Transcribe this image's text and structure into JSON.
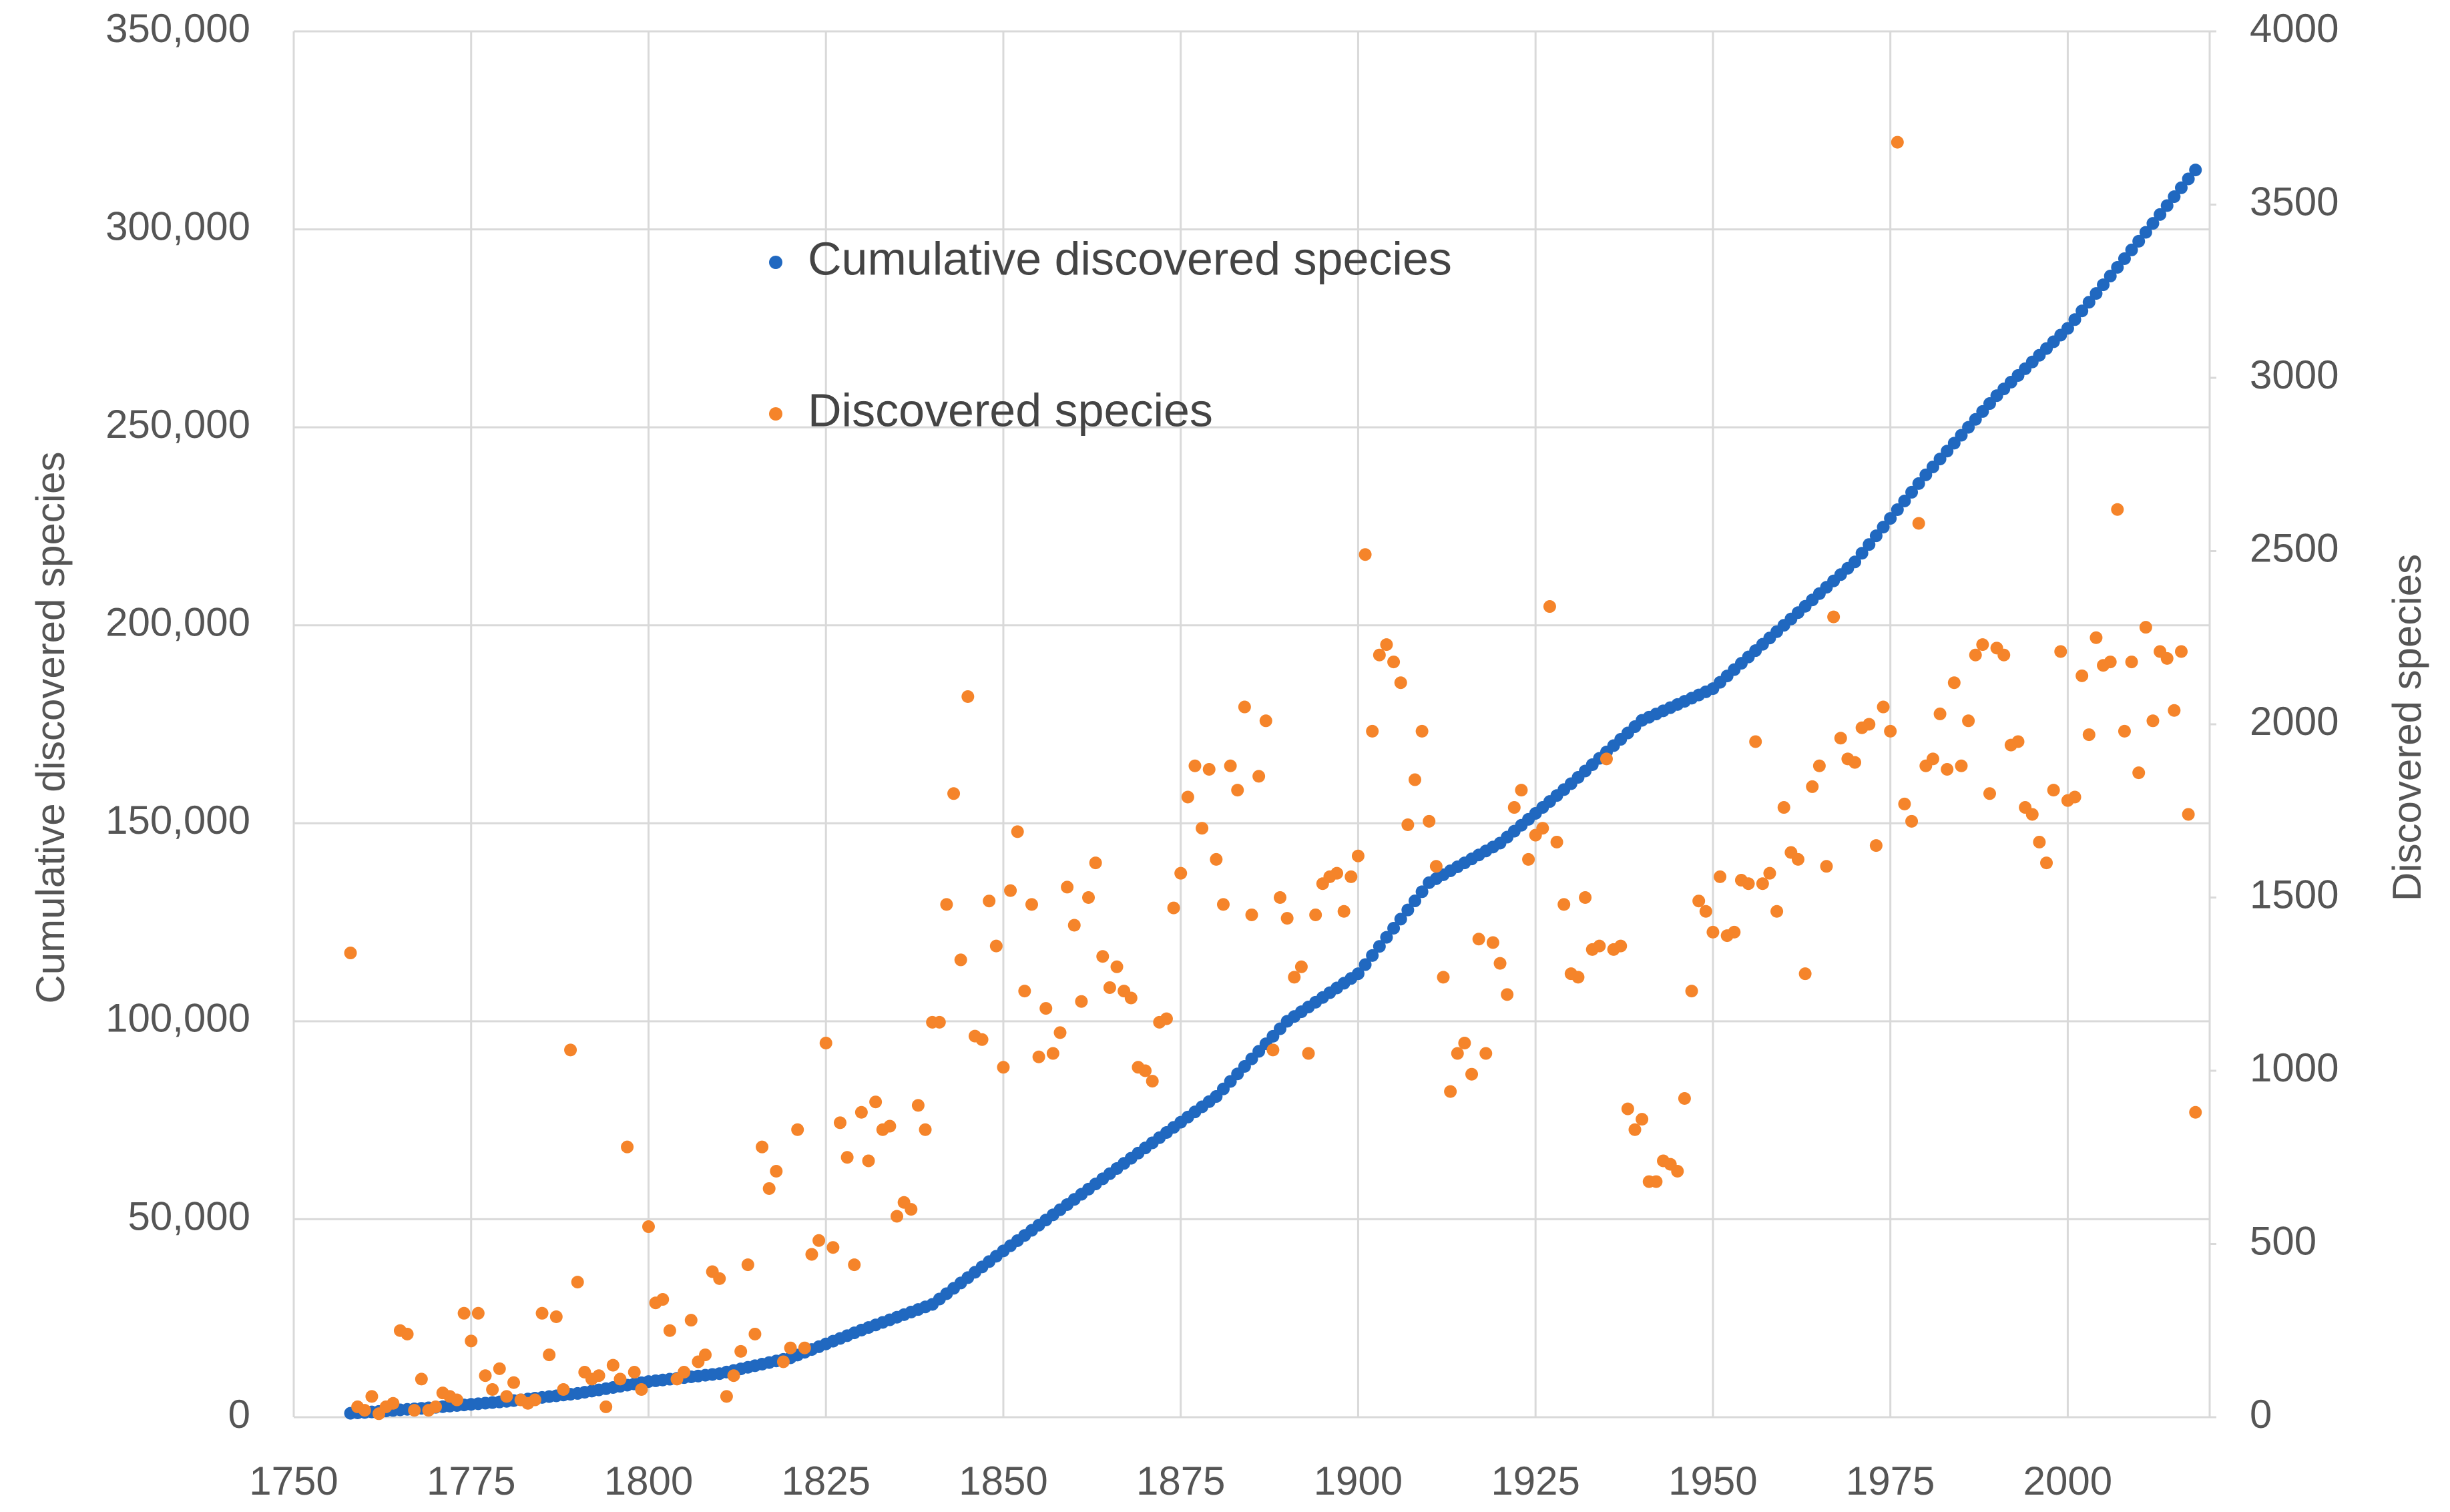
{
  "chart_data": {
    "type": "scatter",
    "y_label": "Cumulative discovered species",
    "y2_label": "Discovered species",
    "xlim": [
      1750,
      2020
    ],
    "xticks": [
      1750,
      1775,
      1800,
      1825,
      1850,
      1875,
      1900,
      1925,
      1950,
      1975,
      2000
    ],
    "ylim": [
      0,
      350000
    ],
    "yticks": [
      0,
      {
        "value": 50000,
        "label": "50,000"
      },
      {
        "value": 100000,
        "label": "100,000"
      },
      {
        "value": 150000,
        "label": "150,000"
      },
      {
        "value": 200000,
        "label": "200,000"
      },
      {
        "value": 250000,
        "label": "250,000"
      },
      {
        "value": 300000,
        "label": "300,000"
      },
      {
        "value": 350000,
        "label": "350,000"
      }
    ],
    "y2lim": [
      0,
      4000
    ],
    "y2ticks": [
      0,
      500,
      1000,
      1500,
      2000,
      2500,
      3000,
      3500,
      4000
    ],
    "grid": true,
    "legend": "top-center",
    "x": [
      1758,
      1759,
      1760,
      1761,
      1762,
      1763,
      1764,
      1765,
      1766,
      1767,
      1768,
      1769,
      1770,
      1771,
      1772,
      1773,
      1774,
      1775,
      1776,
      1777,
      1778,
      1779,
      1780,
      1781,
      1782,
      1783,
      1784,
      1785,
      1786,
      1787,
      1788,
      1789,
      1790,
      1791,
      1792,
      1793,
      1794,
      1795,
      1796,
      1797,
      1798,
      1799,
      1800,
      1801,
      1802,
      1803,
      1804,
      1805,
      1806,
      1807,
      1808,
      1809,
      1810,
      1811,
      1812,
      1813,
      1814,
      1815,
      1816,
      1817,
      1818,
      1819,
      1820,
      1821,
      1822,
      1823,
      1824,
      1825,
      1826,
      1827,
      1828,
      1829,
      1830,
      1831,
      1832,
      1833,
      1834,
      1835,
      1836,
      1837,
      1838,
      1839,
      1840,
      1841,
      1842,
      1843,
      1844,
      1845,
      1846,
      1847,
      1848,
      1849,
      1850,
      1851,
      1852,
      1853,
      1854,
      1855,
      1856,
      1857,
      1858,
      1859,
      1860,
      1861,
      1862,
      1863,
      1864,
      1865,
      1866,
      1867,
      1868,
      1869,
      1870,
      1871,
      1872,
      1873,
      1874,
      1875,
      1876,
      1877,
      1878,
      1879,
      1880,
      1881,
      1882,
      1883,
      1884,
      1885,
      1886,
      1887,
      1888,
      1889,
      1890,
      1891,
      1892,
      1893,
      1894,
      1895,
      1896,
      1897,
      1898,
      1899,
      1900,
      1901,
      1902,
      1903,
      1904,
      1905,
      1906,
      1907,
      1908,
      1909,
      1910,
      1911,
      1912,
      1913,
      1914,
      1915,
      1916,
      1917,
      1918,
      1919,
      1920,
      1921,
      1922,
      1923,
      1924,
      1925,
      1926,
      1927,
      1928,
      1929,
      1930,
      1931,
      1932,
      1933,
      1934,
      1935,
      1936,
      1937,
      1938,
      1939,
      1940,
      1941,
      1942,
      1943,
      1944,
      1945,
      1946,
      1947,
      1948,
      1949,
      1950,
      1951,
      1952,
      1953,
      1954,
      1955,
      1956,
      1957,
      1958,
      1959,
      1960,
      1961,
      1962,
      1963,
      1964,
      1965,
      1966,
      1967,
      1968,
      1969,
      1970,
      1971,
      1972,
      1973,
      1974,
      1975,
      1976,
      1977,
      1978,
      1979,
      1980,
      1981,
      1982,
      1983,
      1984,
      1985,
      1986,
      1987,
      1988,
      1989,
      1990,
      1991,
      1992,
      1993,
      1994,
      1995,
      1996,
      1997,
      1998,
      1999,
      2000,
      2001,
      2002,
      2003,
      2004,
      2005,
      2006,
      2007,
      2008,
      2009,
      2010,
      2011,
      2012,
      2013,
      2014,
      2015,
      2016,
      2017,
      2018
    ],
    "series": [
      {
        "name": "Cumulative discovered species",
        "color": "#2068c0",
        "values": [
          1000,
          1100,
          1200,
          1330,
          1460,
          1590,
          1720,
          1850,
          1980,
          2110,
          2240,
          2370,
          2500,
          2650,
          2800,
          2950,
          3100,
          3250,
          3400,
          3550,
          3700,
          3850,
          4000,
          4200,
          4400,
          4600,
          4800,
          5000,
          5200,
          5400,
          5600,
          5800,
          6000,
          6300,
          6600,
          6900,
          7200,
          7500,
          7800,
          8100,
          8400,
          8700,
          9000,
          9200,
          9400,
          9600,
          9800,
          10000,
          10200,
          10400,
          10600,
          10800,
          11000,
          11400,
          11800,
          12200,
          12600,
          13000,
          13400,
          13800,
          14200,
          14600,
          15000,
          15700,
          16400,
          17100,
          17800,
          18500,
          19200,
          19900,
          20600,
          21300,
          22000,
          22650,
          23300,
          23950,
          24600,
          25250,
          25900,
          26550,
          27200,
          27850,
          28500,
          29850,
          31200,
          32550,
          33900,
          35250,
          36600,
          37950,
          39300,
          40650,
          42000,
          43300,
          44600,
          45900,
          47200,
          48500,
          49800,
          51100,
          52400,
          53700,
          55000,
          56300,
          57600,
          58900,
          60200,
          61500,
          62800,
          64100,
          65400,
          66700,
          68000,
          69300,
          70600,
          71900,
          73200,
          74500,
          75800,
          77100,
          78400,
          79700,
          81000,
          82900,
          84800,
          86700,
          88600,
          90500,
          92400,
          94300,
          96200,
          98100,
          100000,
          101200,
          102400,
          103600,
          104800,
          106000,
          107200,
          108400,
          109600,
          110800,
          112000,
          114300,
          116600,
          118900,
          121200,
          123500,
          125800,
          128100,
          130400,
          132700,
          135000,
          136000,
          137000,
          138000,
          139000,
          140000,
          141000,
          142000,
          143000,
          144000,
          145000,
          146500,
          148000,
          149500,
          151000,
          152500,
          154000,
          155500,
          157000,
          158500,
          160000,
          161600,
          163200,
          164800,
          166400,
          168000,
          169600,
          171200,
          172800,
          174400,
          176000,
          176800,
          177600,
          178400,
          179200,
          180000,
          180800,
          181600,
          182400,
          183200,
          184000,
          185600,
          187200,
          188800,
          190400,
          192000,
          193600,
          195200,
          196800,
          198400,
          200000,
          201600,
          203200,
          204800,
          206400,
          208000,
          209600,
          211200,
          212800,
          214400,
          216000,
          218200,
          220400,
          222600,
          224800,
          227000,
          229200,
          231400,
          233600,
          235800,
          238000,
          240000,
          242000,
          244000,
          246000,
          248000,
          250000,
          252000,
          254000,
          256000,
          258000,
          259700,
          261400,
          263100,
          264800,
          266500,
          268200,
          269900,
          271600,
          273300,
          275000,
          277200,
          279400,
          281600,
          283800,
          286000,
          288200,
          290400,
          292600,
          294800,
          297000,
          299250,
          301500,
          303750,
          306000,
          308250,
          310500,
          312750,
          315000
        ]
      },
      {
        "name": "Discovered species",
        "color": "#f5842a",
        "axis": "y2",
        "values": [
          1340,
          30,
          20,
          60,
          10,
          30,
          40,
          250,
          240,
          20,
          110,
          20,
          30,
          70,
          60,
          50,
          300,
          220,
          300,
          120,
          80,
          140,
          60,
          100,
          50,
          40,
          50,
          300,
          180,
          290,
          80,
          1060,
          390,
          130,
          110,
          120,
          30,
          150,
          110,
          780,
          130,
          80,
          550,
          330,
          340,
          250,
          110,
          130,
          280,
          160,
          180,
          420,
          400,
          60,
          120,
          190,
          440,
          240,
          780,
          660,
          710,
          160,
          200,
          830,
          200,
          470,
          510,
          1080,
          490,
          850,
          750,
          440,
          880,
          740,
          910,
          830,
          840,
          580,
          620,
          600,
          900,
          830,
          1140,
          1140,
          1480,
          1800,
          1320,
          2080,
          1100,
          1090,
          1490,
          1360,
          1010,
          1520,
          1690,
          1230,
          1480,
          1040,
          1180,
          1050,
          1110,
          1530,
          1420,
          1200,
          1500,
          1600,
          1330,
          1240,
          1300,
          1230,
          1210,
          1010,
          1000,
          970,
          1140,
          1150,
          1470,
          1570,
          1790,
          1880,
          1700,
          1870,
          1610,
          1480,
          1880,
          1810,
          2050,
          1450,
          1850,
          2010,
          1060,
          1500,
          1440,
          1270,
          1300,
          1050,
          1450,
          1540,
          1560,
          1570,
          1460,
          1560,
          1620,
          2490,
          1980,
          2200,
          2230,
          2180,
          2120,
          1710,
          1840,
          1980,
          1720,
          1590,
          1270,
          940,
          1050,
          1080,
          990,
          1380,
          1050,
          1370,
          1310,
          1220,
          1760,
          1810,
          1610,
          1680,
          1700,
          2340,
          1660,
          1480,
          1280,
          1270,
          1500,
          1350,
          1360,
          1900,
          1350,
          1360,
          890,
          830,
          860,
          680,
          680,
          740,
          730,
          710,
          920,
          1230,
          1490,
          1460,
          1400,
          1560,
          1390,
          1400,
          1550,
          1540,
          1950,
          1540,
          1570,
          1460,
          1760,
          1630,
          1610,
          1280,
          1820,
          1880,
          1590,
          2310,
          1960,
          1900,
          1890,
          1990,
          2000,
          1650,
          2050,
          1980,
          3680,
          1770,
          1720,
          2580,
          1880,
          1900,
          2030,
          1870,
          2120,
          1880,
          2010,
          2200,
          2230,
          1800,
          2220,
          2200,
          1940,
          1950,
          1760,
          1740,
          1660,
          1600,
          1810,
          2210,
          1780,
          1790,
          2140,
          1970,
          2250,
          2170,
          2180,
          2620,
          1980,
          2180,
          1860,
          2280,
          2010,
          2210,
          2190,
          2040,
          2210,
          1740,
          880
        ]
      }
    ]
  }
}
